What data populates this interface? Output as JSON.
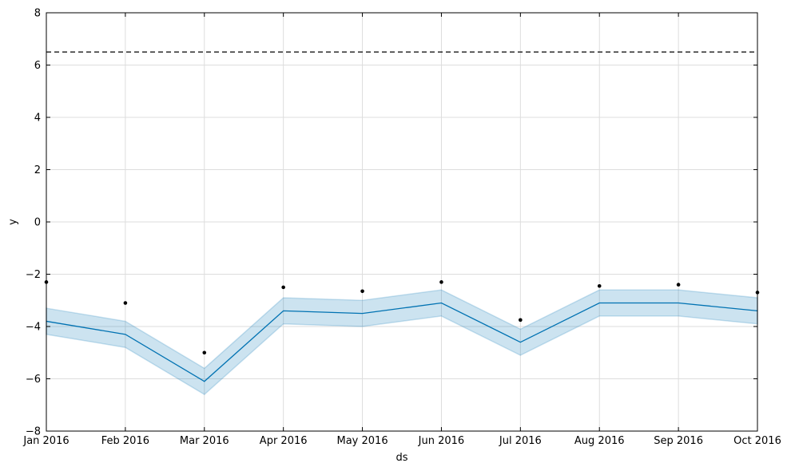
{
  "chart_data": {
    "type": "line",
    "title": "",
    "xlabel": "ds",
    "ylabel": "y",
    "ylim": [
      -8,
      8
    ],
    "x_tick_labels": [
      "Jan 2016",
      "Feb 2016",
      "Mar 2016",
      "Apr 2016",
      "May 2016",
      "Jun 2016",
      "Jul 2016",
      "Aug 2016",
      "Sep 2016",
      "Oct 2016"
    ],
    "y_ticks": [
      -8,
      -6,
      -4,
      -2,
      0,
      2,
      4,
      6,
      8
    ],
    "y_tick_labels": [
      "−8",
      "−6",
      "−4",
      "−2",
      "0",
      "2",
      "4",
      "6",
      "8"
    ],
    "grid": true,
    "cap": 6.5,
    "series": [
      {
        "kind": "observed",
        "values": [
          -2.3,
          -3.1,
          -5.0,
          -2.5,
          -2.65,
          -2.3,
          -3.75,
          -2.45,
          -2.4,
          -2.7
        ]
      },
      {
        "kind": "forecast",
        "values": [
          -3.8,
          -4.3,
          -6.1,
          -3.4,
          -3.5,
          -3.1,
          -4.6,
          -3.1,
          -3.1,
          -3.4
        ]
      },
      {
        "kind": "interval",
        "lower": [
          -4.3,
          -4.8,
          -6.6,
          -3.9,
          -4.0,
          -3.6,
          -5.1,
          -3.6,
          -3.6,
          -3.9
        ],
        "upper": [
          -3.3,
          -3.8,
          -5.6,
          -2.9,
          -3.0,
          -2.6,
          -4.1,
          -2.6,
          -2.6,
          -2.9
        ]
      }
    ],
    "colors": {
      "forecast": "#0072B2",
      "interval": "#0072B2",
      "observed": "#000000",
      "cap": "#000000",
      "grid": "#dddddd"
    }
  }
}
